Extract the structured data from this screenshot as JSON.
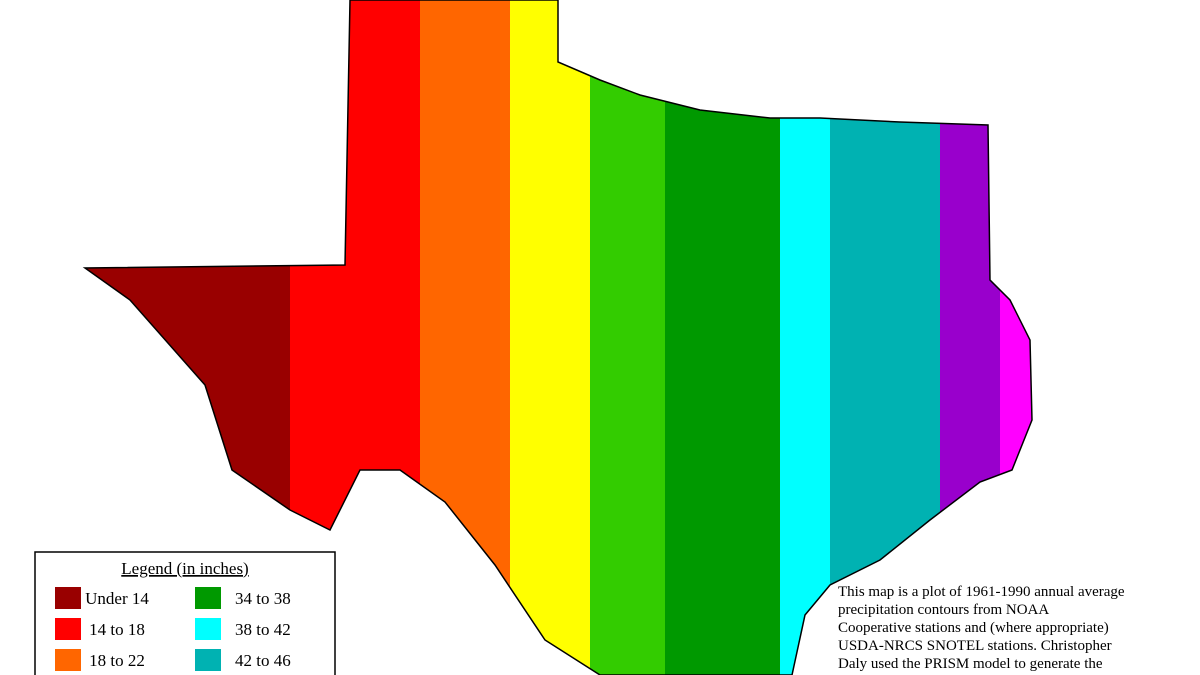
{
  "legend": {
    "title": "Legend (in inches)",
    "items": [
      {
        "label": "Under 14",
        "color": "#990000"
      },
      {
        "label": "14 to 18",
        "color": "#ff0000"
      },
      {
        "label": "18 to 22",
        "color": "#ff6600"
      },
      {
        "label": "34 to 38",
        "color": "#009900"
      },
      {
        "label": "38 to 42",
        "color": "#00ffff"
      },
      {
        "label": "42 to 46",
        "color": "#00b2b2"
      }
    ]
  },
  "note": {
    "lines": [
      "This map is a plot of 1961-1990 annual average",
      "precipitation contours from NOAA",
      "Cooperative stations and (where appropriate)",
      "USDA-NRCS SNOTEL stations. Christopher",
      "Daly used the PRISM model to generate the"
    ]
  }
}
